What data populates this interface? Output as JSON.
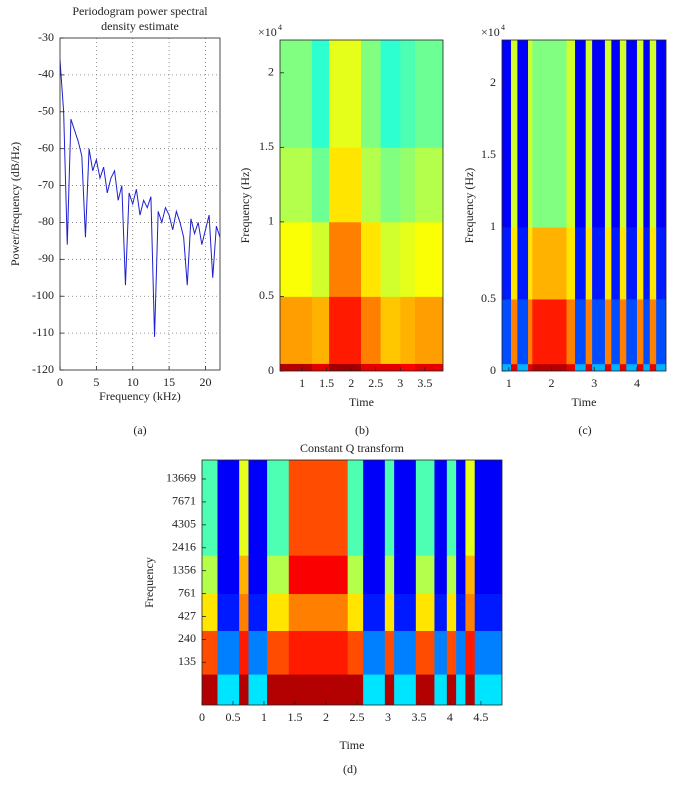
{
  "chart_data": [
    {
      "type": "line",
      "title": [
        "Periodogram power spectral",
        "density estimate"
      ],
      "panel_label": "(a)",
      "xlabel": "Frequency (kHz)",
      "ylabel": "Power/frequency (dB/Hz)",
      "color": "#1f1fd0",
      "grid": true,
      "xlim": [
        0,
        22
      ],
      "xticks": [
        0,
        5,
        10,
        15,
        20
      ],
      "ylim": [
        -120,
        -30
      ],
      "yticks": [
        -120,
        -110,
        -100,
        -90,
        -80,
        -70,
        -60,
        -50,
        -40,
        -30
      ],
      "x": [
        0,
        0.5,
        1,
        1.5,
        2,
        2.5,
        3,
        3.5,
        4,
        4.5,
        5,
        5.5,
        6,
        6.5,
        7,
        7.5,
        8,
        8.5,
        9,
        9.5,
        10,
        10.5,
        11,
        11.5,
        12,
        12.5,
        13,
        13.5,
        14,
        14.5,
        15,
        15.5,
        16,
        16.5,
        17,
        17.5,
        18,
        18.5,
        19,
        19.5,
        20,
        20.5,
        21,
        21.5,
        22
      ],
      "values": [
        -36,
        -50,
        -86,
        -52,
        -55,
        -58,
        -62,
        -84,
        -60,
        -66,
        -63,
        -68,
        -65,
        -72,
        -68,
        -66,
        -74,
        -70,
        -97,
        -72,
        -75,
        -71,
        -78,
        -74,
        -76,
        -73,
        -111,
        -77,
        -80,
        -76,
        -78,
        -82,
        -77,
        -80,
        -84,
        -97,
        -79,
        -83,
        -80,
        -86,
        -82,
        -78,
        -95,
        -81,
        -84
      ]
    },
    {
      "type": "heatmap",
      "panel_label": "(b)",
      "xlabel": "Time",
      "ylabel": "Frequency (Hz)",
      "y_multiplier": "×10",
      "y_multiplier_exponent": "4",
      "colormap": "jet",
      "xlim": [
        0.55,
        3.87
      ],
      "xticks": [
        1,
        1.5,
        2,
        2.5,
        3,
        3.5
      ],
      "ylim": [
        0,
        2.22
      ],
      "yticks": [
        0,
        0.5,
        1,
        1.5,
        2
      ],
      "x_edges": [
        0.55,
        1.2,
        1.55,
        2.2,
        2.6,
        3.0,
        3.3,
        3.87
      ],
      "y_edges": [
        0,
        0.05,
        0.5,
        1,
        1.5,
        2.22
      ],
      "z": [
        [
          0.95,
          0.9,
          0.97,
          0.9,
          0.9,
          0.88,
          0.9
        ],
        [
          0.72,
          0.7,
          0.85,
          0.75,
          0.68,
          0.7,
          0.72
        ],
        [
          0.62,
          0.58,
          0.75,
          0.65,
          0.58,
          0.6,
          0.62
        ],
        [
          0.55,
          0.48,
          0.65,
          0.55,
          0.5,
          0.52,
          0.55
        ],
        [
          0.5,
          0.42,
          0.6,
          0.5,
          0.42,
          0.45,
          0.48
        ]
      ]
    },
    {
      "type": "heatmap",
      "panel_label": "(c)",
      "xlabel": "Time",
      "ylabel": "Frequency (Hz)",
      "y_multiplier": "×10",
      "y_multiplier_exponent": "4",
      "colormap": "jet",
      "xlim": [
        0.84,
        4.68
      ],
      "xticks": [
        1,
        2,
        3,
        4
      ],
      "ylim": [
        0,
        2.3
      ],
      "yticks": [
        0,
        0.5,
        1,
        1.5,
        2
      ],
      "x_edges": [
        0.84,
        1.05,
        1.2,
        1.45,
        1.55,
        2.35,
        2.55,
        2.8,
        2.95,
        3.25,
        3.4,
        3.6,
        3.75,
        4.0,
        4.15,
        4.3,
        4.45,
        4.68
      ],
      "y_edges": [
        0,
        0.05,
        0.5,
        1,
        2.3
      ],
      "z": [
        [
          0.3,
          0.9,
          0.3,
          0.9,
          0.95,
          0.9,
          0.3,
          0.9,
          0.3,
          0.9,
          0.3,
          0.9,
          0.3,
          0.9,
          0.3,
          0.9,
          0.3
        ],
        [
          0.2,
          0.75,
          0.2,
          0.75,
          0.85,
          0.75,
          0.2,
          0.75,
          0.2,
          0.75,
          0.2,
          0.75,
          0.2,
          0.75,
          0.2,
          0.75,
          0.2
        ],
        [
          0.15,
          0.65,
          0.15,
          0.65,
          0.7,
          0.65,
          0.15,
          0.65,
          0.15,
          0.65,
          0.15,
          0.65,
          0.15,
          0.65,
          0.15,
          0.65,
          0.15
        ],
        [
          0.12,
          0.58,
          0.12,
          0.58,
          0.5,
          0.58,
          0.12,
          0.58,
          0.12,
          0.58,
          0.12,
          0.58,
          0.12,
          0.58,
          0.12,
          0.58,
          0.12
        ]
      ]
    },
    {
      "type": "heatmap",
      "title": "Constant Q transform",
      "panel_label": "(d)",
      "xlabel": "Time",
      "ylabel": "Frequency",
      "colormap": "jet",
      "y_scale": "log",
      "xlim": [
        0,
        4.84
      ],
      "xticks": [
        0,
        0.5,
        1,
        1.5,
        2,
        2.5,
        3,
        3.5,
        4,
        4.5
      ],
      "ylim": [
        46,
        22050
      ],
      "yticks": [
        135,
        240,
        427,
        761,
        1356,
        2416,
        4305,
        7671,
        13669
      ],
      "x_edges": [
        0,
        0.25,
        0.6,
        0.75,
        1.05,
        1.4,
        2.35,
        2.6,
        2.95,
        3.1,
        3.45,
        3.75,
        3.95,
        4.1,
        4.25,
        4.4,
        4.84
      ],
      "y_edges": [
        46,
        100,
        300,
        761,
        2000,
        22050
      ],
      "z": [
        [
          0.95,
          0.35,
          0.95,
          0.35,
          0.95,
          0.95,
          0.95,
          0.35,
          0.95,
          0.35,
          0.95,
          0.35,
          0.95,
          0.35,
          0.95,
          0.35
        ],
        [
          0.8,
          0.25,
          0.85,
          0.25,
          0.8,
          0.85,
          0.8,
          0.25,
          0.8,
          0.25,
          0.8,
          0.25,
          0.8,
          0.25,
          0.85,
          0.25
        ],
        [
          0.65,
          0.15,
          0.75,
          0.15,
          0.65,
          0.75,
          0.65,
          0.15,
          0.65,
          0.15,
          0.65,
          0.15,
          0.65,
          0.15,
          0.75,
          0.15
        ],
        [
          0.55,
          0.12,
          0.7,
          0.12,
          0.55,
          0.88,
          0.55,
          0.12,
          0.55,
          0.12,
          0.55,
          0.12,
          0.55,
          0.12,
          0.7,
          0.12
        ],
        [
          0.45,
          0.12,
          0.6,
          0.12,
          0.45,
          0.8,
          0.45,
          0.12,
          0.45,
          0.12,
          0.45,
          0.12,
          0.45,
          0.12,
          0.6,
          0.12
        ]
      ]
    }
  ]
}
